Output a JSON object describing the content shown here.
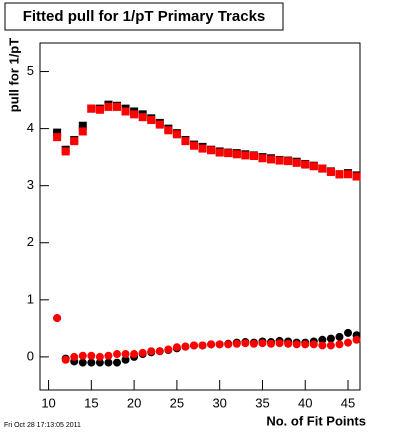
{
  "chart_data": {
    "type": "scatter",
    "title": "Fitted pull for 1/pT Primary Tracks",
    "y_label": "pull for 1/pT",
    "x_label": "No. of Fit Points",
    "footer": "Fri Oct 28 17:13:05 2011",
    "x": [
      11,
      12,
      13,
      14,
      15,
      16,
      17,
      18,
      19,
      20,
      21,
      22,
      23,
      24,
      25,
      26,
      27,
      28,
      29,
      30,
      31,
      32,
      33,
      34,
      35,
      36,
      37,
      38,
      39,
      40,
      41,
      42,
      43,
      44,
      45,
      46
    ],
    "series": [
      {
        "color": "#000000",
        "marker": "square",
        "values": [
          3.93,
          3.63,
          3.8,
          4.05,
          4.35,
          4.35,
          4.42,
          4.4,
          4.35,
          4.3,
          4.25,
          4.18,
          4.1,
          4.0,
          3.92,
          3.8,
          3.72,
          3.68,
          3.63,
          3.6,
          3.58,
          3.57,
          3.55,
          3.53,
          3.5,
          3.48,
          3.45,
          3.44,
          3.42,
          3.38,
          3.35,
          3.3,
          3.25,
          3.2,
          3.22,
          3.18
        ]
      },
      {
        "color": "#ff0000",
        "marker": "square",
        "values": [
          3.85,
          3.6,
          3.78,
          3.95,
          4.35,
          4.33,
          4.38,
          4.38,
          4.3,
          4.25,
          4.2,
          4.15,
          4.07,
          3.97,
          3.9,
          3.78,
          3.7,
          3.65,
          3.62,
          3.58,
          3.57,
          3.55,
          3.53,
          3.52,
          3.48,
          3.46,
          3.44,
          3.43,
          3.4,
          3.37,
          3.34,
          3.3,
          3.24,
          3.2,
          3.2,
          3.16
        ]
      },
      {
        "color": "#000000",
        "marker": "circle",
        "values": [
          0.68,
          -0.03,
          -0.08,
          -0.1,
          -0.1,
          -0.1,
          -0.1,
          -0.1,
          -0.05,
          0.0,
          0.05,
          0.08,
          0.1,
          0.12,
          0.15,
          0.18,
          0.2,
          0.2,
          0.22,
          0.22,
          0.23,
          0.25,
          0.26,
          0.25,
          0.27,
          0.26,
          0.28,
          0.27,
          0.25,
          0.25,
          0.27,
          0.3,
          0.32,
          0.35,
          0.42,
          0.38
        ]
      },
      {
        "color": "#ff0000",
        "marker": "circle",
        "values": [
          0.68,
          -0.05,
          0.0,
          0.02,
          0.02,
          0.0,
          0.02,
          0.05,
          0.05,
          0.05,
          0.07,
          0.1,
          0.1,
          0.13,
          0.17,
          0.18,
          0.2,
          0.2,
          0.22,
          0.22,
          0.22,
          0.23,
          0.24,
          0.23,
          0.24,
          0.23,
          0.24,
          0.23,
          0.22,
          0.22,
          0.22,
          0.2,
          0.2,
          0.22,
          0.25,
          0.3
        ]
      }
    ],
    "xlim": [
      9,
      46.4
    ],
    "xticks": [
      10,
      15,
      20,
      25,
      30,
      35,
      40,
      45
    ],
    "ylim": [
      -0.58,
      5.5
    ],
    "yticks": [
      0,
      1,
      2,
      3,
      4,
      5
    ]
  }
}
